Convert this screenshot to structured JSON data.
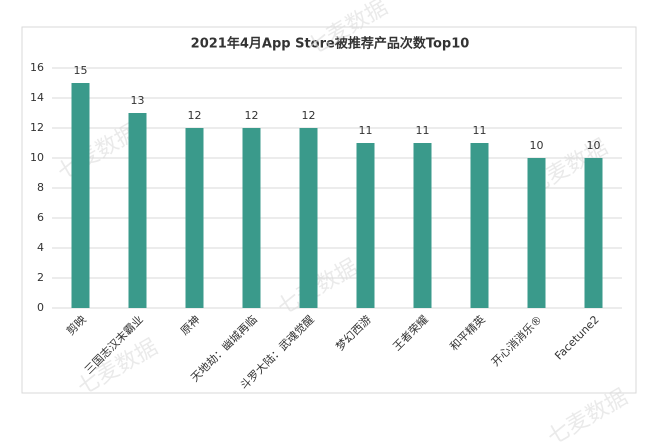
{
  "chart_data": {
    "type": "bar",
    "title": "2021年4月App Store被推荐产品次数Top10",
    "categories": [
      "剪映",
      "三国志汉末霸业",
      "原神",
      "天地劫：幽城再临",
      "斗罗大陆：武魂觉醒",
      "梦幻西游",
      "王者荣耀",
      "和平精英",
      "开心消消乐®",
      "Facetune2"
    ],
    "values": [
      15,
      13,
      12,
      12,
      12,
      11,
      11,
      11,
      10,
      10
    ],
    "color": "#3a9a8b",
    "ylim": [
      0,
      16
    ],
    "yticks": [
      0,
      2,
      4,
      6,
      8,
      10,
      12,
      14,
      16
    ],
    "grid": true,
    "watermark": "七麦数据"
  }
}
